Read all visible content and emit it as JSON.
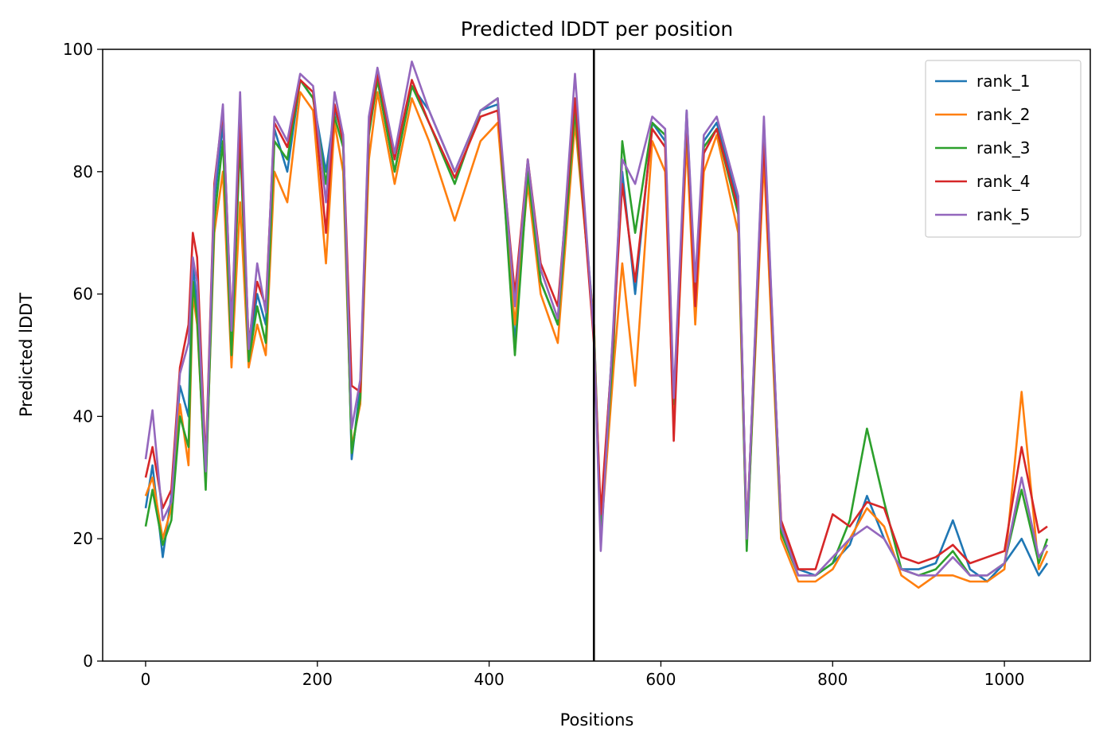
{
  "chart_data": {
    "type": "line",
    "title": "Predicted lDDT per position",
    "xlabel": "Positions",
    "ylabel": "Predicted lDDT",
    "xlim": [
      -50,
      1100
    ],
    "ylim": [
      0,
      100
    ],
    "xticks": [
      0,
      200,
      400,
      600,
      800,
      1000
    ],
    "yticks": [
      0,
      20,
      40,
      60,
      80,
      100
    ],
    "grid": false,
    "legend_position": "upper right",
    "vline": {
      "x": 522,
      "color": "#000000"
    },
    "series": [
      {
        "name": "rank_1",
        "color": "#1f77b4",
        "x": [
          0,
          8,
          20,
          30,
          40,
          50,
          55,
          60,
          70,
          80,
          90,
          100,
          110,
          120,
          130,
          140,
          150,
          165,
          180,
          195,
          210,
          220,
          230,
          240,
          250,
          260,
          270,
          290,
          310,
          330,
          360,
          390,
          410,
          430,
          445,
          460,
          480,
          500,
          522,
          530,
          545,
          555,
          570,
          590,
          605,
          615,
          630,
          640,
          650,
          665,
          690,
          700,
          720,
          740,
          760,
          780,
          800,
          820,
          840,
          860,
          880,
          900,
          920,
          940,
          960,
          980,
          1000,
          1020,
          1040,
          1050
        ],
        "y": [
          25,
          32,
          17,
          27,
          45,
          40,
          65,
          58,
          30,
          75,
          88,
          52,
          90,
          50,
          60,
          55,
          87,
          80,
          95,
          92,
          80,
          90,
          86,
          33,
          45,
          88,
          95,
          80,
          94,
          90,
          80,
          90,
          91,
          52,
          80,
          62,
          55,
          90,
          55,
          22,
          55,
          80,
          60,
          88,
          85,
          40,
          90,
          60,
          85,
          88,
          75,
          20,
          88,
          22,
          15,
          14,
          16,
          19,
          27,
          20,
          15,
          15,
          16,
          23,
          15,
          13,
          16,
          20,
          14,
          16
        ]
      },
      {
        "name": "rank_2",
        "color": "#ff7f0e",
        "x": [
          0,
          8,
          20,
          30,
          40,
          50,
          55,
          60,
          70,
          80,
          90,
          100,
          110,
          120,
          130,
          140,
          150,
          165,
          180,
          195,
          210,
          220,
          230,
          240,
          250,
          260,
          270,
          290,
          310,
          330,
          360,
          390,
          410,
          430,
          445,
          460,
          480,
          500,
          522,
          530,
          545,
          555,
          570,
          590,
          605,
          615,
          630,
          640,
          650,
          665,
          690,
          700,
          720,
          740,
          760,
          780,
          800,
          820,
          840,
          860,
          880,
          900,
          920,
          940,
          960,
          980,
          1000,
          1020,
          1040,
          1050
        ],
        "y": [
          27,
          30,
          20,
          25,
          42,
          32,
          60,
          55,
          29,
          70,
          80,
          48,
          75,
          48,
          55,
          50,
          80,
          75,
          93,
          90,
          65,
          88,
          80,
          35,
          42,
          82,
          93,
          78,
          92,
          85,
          72,
          85,
          88,
          55,
          78,
          60,
          52,
          88,
          55,
          20,
          48,
          65,
          45,
          85,
          80,
          38,
          85,
          55,
          80,
          86,
          70,
          19,
          82,
          20,
          13,
          13,
          15,
          20,
          25,
          22,
          14,
          12,
          14,
          14,
          13,
          13,
          15,
          44,
          15,
          18
        ]
      },
      {
        "name": "rank_3",
        "color": "#2ca02c",
        "x": [
          0,
          8,
          20,
          30,
          40,
          50,
          55,
          60,
          70,
          80,
          90,
          100,
          110,
          120,
          130,
          140,
          150,
          165,
          180,
          195,
          210,
          220,
          230,
          240,
          250,
          260,
          270,
          290,
          310,
          330,
          360,
          390,
          410,
          430,
          445,
          460,
          480,
          500,
          522,
          530,
          545,
          555,
          570,
          590,
          605,
          615,
          630,
          640,
          650,
          665,
          690,
          700,
          720,
          740,
          760,
          780,
          800,
          820,
          840,
          860,
          880,
          900,
          920,
          940,
          960,
          980,
          1000,
          1020,
          1040,
          1050
        ],
        "y": [
          22,
          28,
          19,
          23,
          40,
          35,
          62,
          56,
          28,
          72,
          85,
          50,
          85,
          49,
          58,
          52,
          85,
          82,
          95,
          92,
          78,
          89,
          84,
          34,
          43,
          86,
          95,
          80,
          94,
          88,
          78,
          90,
          92,
          50,
          80,
          62,
          55,
          90,
          54,
          21,
          52,
          85,
          70,
          88,
          86,
          42,
          88,
          60,
          84,
          87,
          73,
          18,
          86,
          21,
          14,
          14,
          16,
          23,
          38,
          26,
          15,
          14,
          15,
          18,
          14,
          14,
          16,
          28,
          16,
          20
        ]
      },
      {
        "name": "rank_4",
        "color": "#d62728",
        "x": [
          0,
          8,
          20,
          30,
          40,
          50,
          55,
          60,
          70,
          80,
          90,
          100,
          110,
          120,
          130,
          140,
          150,
          165,
          180,
          195,
          210,
          220,
          230,
          240,
          250,
          260,
          270,
          290,
          310,
          330,
          360,
          390,
          410,
          430,
          445,
          460,
          480,
          500,
          522,
          530,
          545,
          555,
          570,
          590,
          605,
          615,
          630,
          640,
          650,
          665,
          690,
          700,
          720,
          740,
          760,
          780,
          800,
          820,
          840,
          860,
          880,
          900,
          920,
          940,
          960,
          980,
          1000,
          1020,
          1040,
          1050
        ],
        "y": [
          30,
          35,
          25,
          28,
          48,
          55,
          70,
          66,
          32,
          78,
          90,
          55,
          88,
          52,
          62,
          58,
          88,
          84,
          95,
          93,
          70,
          91,
          85,
          45,
          44,
          87,
          96,
          82,
          95,
          88,
          79,
          89,
          90,
          60,
          82,
          65,
          58,
          92,
          52,
          24,
          54,
          78,
          62,
          87,
          84,
          36,
          89,
          58,
          83,
          87,
          74,
          21,
          85,
          23,
          15,
          15,
          24,
          22,
          26,
          25,
          17,
          16,
          17,
          19,
          16,
          17,
          18,
          35,
          21,
          22
        ]
      },
      {
        "name": "rank_5",
        "color": "#9467bd",
        "x": [
          0,
          8,
          20,
          30,
          40,
          50,
          55,
          60,
          70,
          80,
          90,
          100,
          110,
          120,
          130,
          140,
          150,
          165,
          180,
          195,
          210,
          220,
          230,
          240,
          250,
          260,
          270,
          290,
          310,
          330,
          360,
          390,
          410,
          430,
          445,
          460,
          480,
          500,
          522,
          530,
          545,
          555,
          570,
          590,
          605,
          615,
          630,
          640,
          650,
          665,
          690,
          700,
          720,
          740,
          760,
          780,
          800,
          820,
          840,
          860,
          880,
          900,
          920,
          940,
          960,
          980,
          1000,
          1020,
          1040,
          1050
        ],
        "y": [
          33,
          41,
          23,
          26,
          47,
          52,
          66,
          62,
          31,
          77,
          91,
          54,
          93,
          51,
          65,
          57,
          89,
          85,
          96,
          94,
          75,
          93,
          86,
          38,
          46,
          89,
          97,
          83,
          98,
          90,
          80,
          90,
          92,
          58,
          82,
          64,
          56,
          96,
          53,
          18,
          56,
          82,
          78,
          89,
          87,
          43,
          90,
          62,
          86,
          89,
          76,
          20,
          89,
          22,
          14,
          14,
          17,
          20,
          22,
          20,
          15,
          14,
          14,
          17,
          14,
          14,
          16,
          30,
          17,
          19
        ]
      }
    ]
  }
}
